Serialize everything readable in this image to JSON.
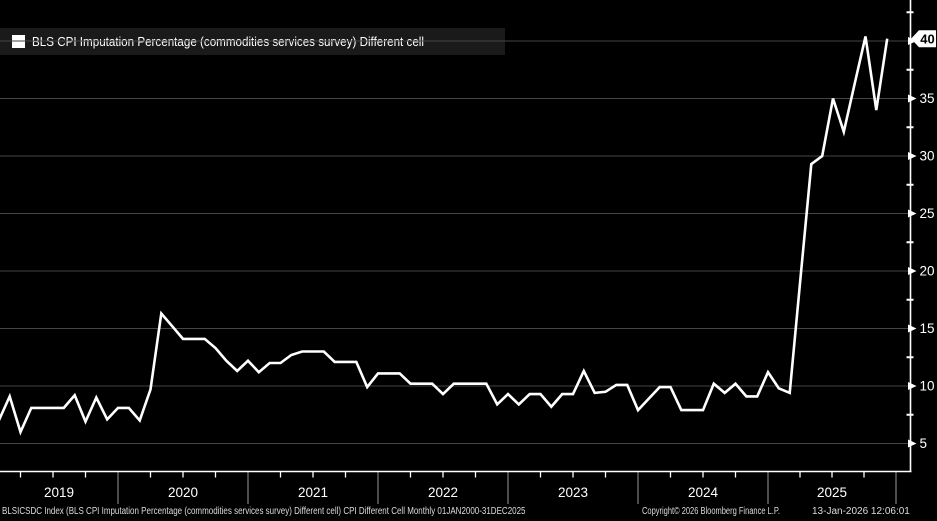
{
  "legend": {
    "label": "BLS CPI Imputation Percentage (commodities services survey) Different cell"
  },
  "footer": {
    "description": "BLSICSDC Index (BLS CPI Imputation Percentage (commodities services survey) Different cell) CPI Different Cell Monthly 01JAN2000-31DEC2025",
    "copyright": "Copyright© 2026 Bloomberg Finance L.P.",
    "timestamp": "13-Jan-2026 12:06:01"
  },
  "colors": {
    "background": "#000000",
    "line": "#ffffff",
    "grid": "#454545",
    "axis": "#ffffff",
    "year_separator": "#999999",
    "legend_bg": "#1a1a1a",
    "tag_bg": "#ffffff",
    "tag_text": "#000000",
    "label_text": "#ffffff"
  },
  "chart_data": {
    "type": "line",
    "title": "BLS CPI Imputation Percentage (commodities services survey) Different cell",
    "grid": "horizontal",
    "legend_position": "top-left",
    "x_axis": {
      "tick_labels": [
        "2019",
        "2020",
        "2021",
        "2022",
        "2023",
        "2024",
        "2025"
      ],
      "minor_ticks_per_year": 4,
      "range_shown": [
        "2019-01",
        "2025-12"
      ]
    },
    "y_axis": {
      "side": "right",
      "ticks": [
        5,
        10,
        15,
        20,
        25,
        30,
        35,
        40
      ],
      "minor_tick_step": 2.5,
      "ylim": [
        2.5,
        43.5
      ]
    },
    "last_value_marker": {
      "label": "40",
      "value": 40.2
    },
    "series": [
      {
        "name": "BLS CPI Imputation Percentage (commodities services survey) Different cell",
        "frequency": "monthly",
        "start": "2019-01",
        "end": "2025-11",
        "color": "#ffffff",
        "values": [
          7.0,
          9.1,
          6.0,
          8.1,
          8.1,
          8.1,
          8.1,
          9.2,
          6.9,
          9.0,
          7.1,
          8.1,
          8.1,
          7.0,
          9.7,
          16.3,
          15.2,
          14.1,
          14.1,
          14.1,
          13.3,
          12.2,
          11.3,
          12.2,
          11.2,
          12.0,
          12.0,
          12.7,
          13.0,
          13.0,
          13.0,
          12.1,
          12.1,
          12.1,
          9.9,
          11.1,
          11.1,
          11.1,
          10.2,
          10.2,
          10.2,
          9.3,
          10.2,
          10.2,
          10.2,
          10.2,
          8.4,
          9.3,
          8.4,
          9.3,
          9.3,
          8.2,
          9.3,
          9.3,
          11.3,
          9.4,
          9.5,
          10.1,
          10.1,
          7.9,
          8.9,
          9.9,
          9.9,
          7.9,
          7.9,
          7.9,
          10.2,
          9.4,
          10.2,
          9.1,
          9.1,
          11.2,
          9.8,
          9.4,
          19.4,
          29.3,
          30.0,
          35.0,
          32.1,
          36.3,
          40.4,
          34.0,
          40.2
        ]
      }
    ]
  }
}
